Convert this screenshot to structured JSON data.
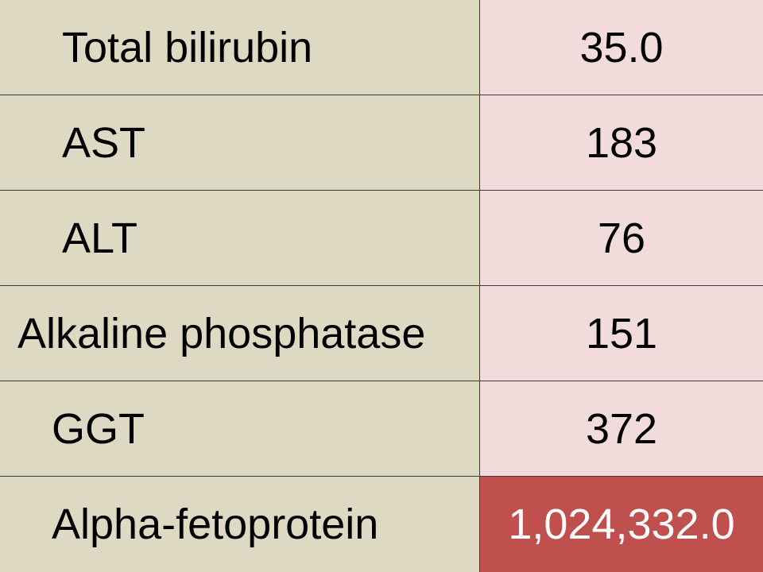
{
  "table": {
    "rows": [
      [
        "Total bilirubin",
        "35.0"
      ],
      [
        "AST",
        "183"
      ],
      [
        "ALT",
        "76"
      ],
      [
        "Alkaline phosphatase",
        "151"
      ],
      [
        "GGT",
        "372"
      ],
      [
        "Alpha-fetoprotein",
        "1,024,332.0"
      ]
    ]
  }
}
